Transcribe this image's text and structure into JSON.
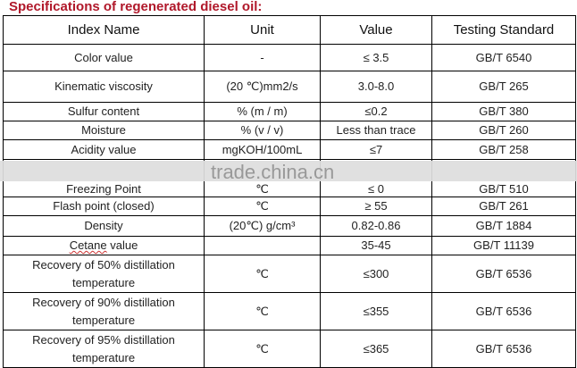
{
  "title": "Specifications of regenerated diesel oil:",
  "watermark": "trade.china.cn",
  "columns": [
    "Index Name",
    "Unit",
    "Value",
    "Testing Standard"
  ],
  "rows": [
    [
      "Color value",
      "-",
      "≤ 3.5",
      "GB/T 6540"
    ],
    [
      "Kinematic viscosity",
      "(20 ℃)mm2/s",
      "3.0-8.0",
      "GB/T 265"
    ],
    [
      "Sulfur content",
      "% (m / m)",
      "≤0.2",
      "GB/T 380"
    ],
    [
      "Moisture",
      "% (v / v)",
      "Less than trace",
      "GB/T 260"
    ],
    [
      "Acidity value",
      "mgKOH/100mL",
      "≤7",
      "GB/T 258"
    ],
    [
      "Freezing Point",
      "℃",
      "≤ 0",
      "GB/T 510"
    ],
    [
      "Flash point (closed)",
      "℃",
      "≥ 55",
      "GB/T 261"
    ],
    [
      "Density",
      "(20℃) g/cm³",
      "0.82-0.86",
      "GB/T 1884"
    ],
    [
      "Cetane value",
      "",
      "35-45",
      "GB/T 11139"
    ],
    [
      "Recovery of 50% distillation temperature",
      "℃",
      "≤300",
      "GB/T 6536"
    ],
    [
      "Recovery of 90% distillation temperature",
      "℃",
      "≤355",
      "GB/T 6536"
    ],
    [
      "Recovery of 95% distillation temperature",
      "℃",
      "≤365",
      "GB/T 6536"
    ]
  ]
}
